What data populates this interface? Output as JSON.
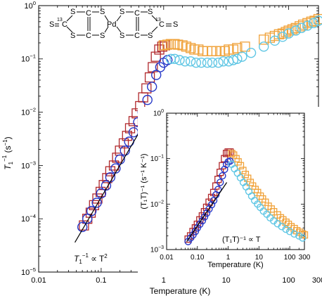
{
  "colors": {
    "red": "#b0282c",
    "blue": "#2638c8",
    "orange": "#f0a23a",
    "cyan": "#5fc6e4",
    "fit": "#000000"
  },
  "chart_data": [
    {
      "type": "scatter",
      "xlabel": "Temperature (K)",
      "ylabel_main": "T",
      "ylabel_sub": "1",
      "ylabel_sup": "−1",
      "ylabel_unit": " (s",
      "ylabel_unit_sup": "−1",
      "ylabel_close": ")",
      "xscale": "log",
      "yscale": "log",
      "xlim": [
        0.01,
        300
      ],
      "ylim": [
        1e-05,
        1
      ],
      "x_ticks": [
        {
          "v": 0.01,
          "label": "0.01"
        },
        {
          "v": 0.1,
          "label": "0.1"
        },
        {
          "v": 1,
          "label": "1"
        },
        {
          "v": 10,
          "label": "10"
        },
        {
          "v": 100,
          "label": "100"
        },
        {
          "v": 300,
          "label": "300"
        }
      ],
      "y_ticks": [
        {
          "v": 1,
          "base": "10",
          "exp": "0"
        },
        {
          "v": 0.1,
          "base": "10",
          "exp": "−1"
        },
        {
          "v": 0.01,
          "base": "10",
          "exp": "−2"
        },
        {
          "v": 0.001,
          "base": "10",
          "exp": "−3"
        },
        {
          "v": 0.0001,
          "base": "10",
          "exp": "−4"
        },
        {
          "v": 1e-05,
          "base": "10",
          "exp": "−5"
        }
      ],
      "annotation": {
        "main": "T",
        "sub": "1",
        "sup": "−1",
        "rel": " ∝ T",
        "pow": "2"
      },
      "fit_line": {
        "x": [
          0.038,
          0.42
        ],
        "y": [
          3.6e-05,
          0.0045
        ]
      },
      "series": [
        {
          "marker": "square",
          "color": "red",
          "x": [
            0.053,
            0.06,
            0.068,
            0.077,
            0.087,
            0.098,
            0.11,
            0.125,
            0.14,
            0.16,
            0.18,
            0.2,
            0.23,
            0.26,
            0.29,
            0.33,
            0.37,
            0.42,
            0.47,
            0.53,
            0.6,
            0.67,
            0.75,
            0.85,
            0.95,
            1.05
          ],
          "y": [
            7.5e-05,
            0.0001,
            0.00013,
            0.00018,
            0.00024,
            0.00032,
            0.00043,
            0.00058,
            0.00078,
            0.001,
            0.0014,
            0.0019,
            0.0026,
            0.0036,
            0.005,
            0.0068,
            0.0095,
            0.013,
            0.019,
            0.028,
            0.045,
            0.07,
            0.11,
            0.15,
            0.17,
            0.18
          ]
        },
        {
          "marker": "square",
          "color": "orange",
          "x": [
            1.0,
            1.15,
            1.3,
            1.5,
            1.7,
            2.0,
            2.3,
            2.7,
            3.1,
            3.6,
            4.2,
            5.0,
            6.0,
            7.0,
            8.0,
            9.5,
            11,
            13,
            15,
            20,
            40,
            50,
            60,
            70,
            80,
            90,
            100,
            115,
            130,
            150,
            170,
            200,
            230,
            260,
            300
          ],
          "y": [
            0.18,
            0.185,
            0.19,
            0.19,
            0.185,
            0.18,
            0.17,
            0.16,
            0.15,
            0.15,
            0.14,
            0.14,
            0.14,
            0.14,
            0.14,
            0.14,
            0.15,
            0.15,
            0.16,
            0.17,
            0.23,
            0.25,
            0.27,
            0.29,
            0.3,
            0.32,
            0.34,
            0.36,
            0.38,
            0.41,
            0.44,
            0.47,
            0.5,
            0.52,
            0.56
          ]
        },
        {
          "marker": "circle",
          "color": "blue",
          "x": [
            0.05,
            0.06,
            0.07,
            0.085,
            0.1,
            0.12,
            0.14,
            0.17,
            0.2,
            0.24,
            0.28,
            0.33,
            0.39,
            0.46,
            0.55,
            0.65,
            0.76,
            0.88,
            1.0,
            1.15
          ],
          "y": [
            7e-05,
            0.0001,
            0.00014,
            0.0002,
            0.0003,
            0.00042,
            0.0006,
            0.00088,
            0.0013,
            0.0019,
            0.0028,
            0.0042,
            0.0065,
            0.01,
            0.017,
            0.03,
            0.05,
            0.07,
            0.085,
            0.095
          ]
        },
        {
          "marker": "circle",
          "color": "cyan",
          "x": [
            1.3,
            1.5,
            1.8,
            2.2,
            2.7,
            3.3,
            4.0,
            5.0,
            6.0,
            7.5,
            9.0,
            11,
            13,
            15,
            18,
            25,
            40,
            60,
            80,
            100,
            130,
            160,
            200,
            250,
            300
          ],
          "y": [
            0.1,
            0.1,
            0.095,
            0.09,
            0.09,
            0.085,
            0.085,
            0.085,
            0.085,
            0.085,
            0.09,
            0.09,
            0.095,
            0.1,
            0.11,
            0.13,
            0.17,
            0.22,
            0.26,
            0.3,
            0.34,
            0.38,
            0.42,
            0.47,
            0.52
          ]
        }
      ]
    },
    {
      "type": "scatter",
      "xlabel": "Temperature (K)",
      "ylabel": "(T₁T)⁻¹ (s⁻¹ K⁻¹)",
      "xscale": "log",
      "yscale": "log",
      "xlim": [
        0.01,
        300
      ],
      "ylim": [
        0.001,
        1
      ],
      "x_ticks": [
        {
          "v": 0.01,
          "label": "0.01"
        },
        {
          "v": 0.1,
          "label": "0.10"
        },
        {
          "v": 1,
          "label": "1"
        },
        {
          "v": 10,
          "label": "10"
        },
        {
          "v": 100,
          "label": "100"
        },
        {
          "v": 300,
          "label": "300"
        }
      ],
      "y_ticks": [
        {
          "v": 1,
          "base": "10",
          "exp": "0"
        },
        {
          "v": 0.1,
          "base": "10",
          "exp": "−1"
        },
        {
          "v": 0.01,
          "base": "10",
          "exp": "−2"
        },
        {
          "v": 0.001,
          "base": "10",
          "exp": "−3"
        }
      ],
      "annotation": "(T₁T)⁻¹ ∝ T",
      "fit_line": {
        "x": [
          0.045,
          0.9
        ],
        "y": [
          0.0015,
          0.03
        ]
      },
      "series": [
        {
          "marker": "square",
          "color": "red",
          "x": [
            0.05,
            0.06,
            0.072,
            0.086,
            0.1,
            0.12,
            0.145,
            0.17,
            0.2,
            0.24,
            0.29,
            0.34,
            0.4,
            0.47,
            0.55,
            0.65,
            0.76,
            0.88,
            1.0,
            1.15
          ],
          "y": [
            0.0017,
            0.002,
            0.0025,
            0.003,
            0.0036,
            0.0045,
            0.0055,
            0.0068,
            0.0085,
            0.011,
            0.014,
            0.018,
            0.025,
            0.035,
            0.05,
            0.07,
            0.1,
            0.13,
            0.14,
            0.14
          ]
        },
        {
          "marker": "square",
          "color": "orange",
          "x": [
            1.3,
            1.5,
            1.8,
            2.1,
            2.5,
            3.0,
            3.6,
            4.3,
            5.2,
            6.2,
            7.5,
            9.0,
            11,
            13,
            16,
            20,
            25,
            30,
            40,
            50,
            60,
            75,
            90,
            110,
            140,
            170,
            210,
            260,
            300
          ],
          "y": [
            0.13,
            0.12,
            0.1,
            0.085,
            0.07,
            0.055,
            0.045,
            0.037,
            0.03,
            0.025,
            0.021,
            0.018,
            0.015,
            0.013,
            0.011,
            0.009,
            0.0078,
            0.0068,
            0.0058,
            0.005,
            0.0045,
            0.004,
            0.0036,
            0.0032,
            0.0029,
            0.0026,
            0.0024,
            0.0022,
            0.0021
          ]
        },
        {
          "marker": "circle",
          "color": "blue",
          "x": [
            0.05,
            0.06,
            0.072,
            0.086,
            0.1,
            0.12,
            0.145,
            0.17,
            0.2,
            0.24,
            0.29,
            0.34,
            0.4,
            0.47,
            0.55,
            0.65,
            0.76,
            0.88,
            1.0,
            1.15
          ],
          "y": [
            0.0015,
            0.0018,
            0.0021,
            0.0025,
            0.003,
            0.0036,
            0.0043,
            0.0052,
            0.0063,
            0.0078,
            0.0097,
            0.012,
            0.016,
            0.021,
            0.03,
            0.042,
            0.058,
            0.075,
            0.085,
            0.088
          ]
        },
        {
          "marker": "circle",
          "color": "cyan",
          "x": [
            1.3,
            1.6,
            2.0,
            2.5,
            3.1,
            3.8,
            4.7,
            5.8,
            7.2,
            9.0,
            11,
            14,
            18,
            23,
            30,
            40,
            55,
            75,
            100,
            140,
            200,
            260
          ],
          "y": [
            0.075,
            0.06,
            0.048,
            0.038,
            0.03,
            0.024,
            0.019,
            0.015,
            0.012,
            0.01,
            0.0085,
            0.007,
            0.006,
            0.005,
            0.0043,
            0.0037,
            0.0032,
            0.0028,
            0.0025,
            0.0022,
            0.002,
            0.0018
          ]
        }
      ]
    }
  ],
  "molecule": {
    "atom_S": "S",
    "atom_C": "C",
    "atom_Pd": "Pd",
    "isotope": "13",
    "bond_double": "="
  }
}
